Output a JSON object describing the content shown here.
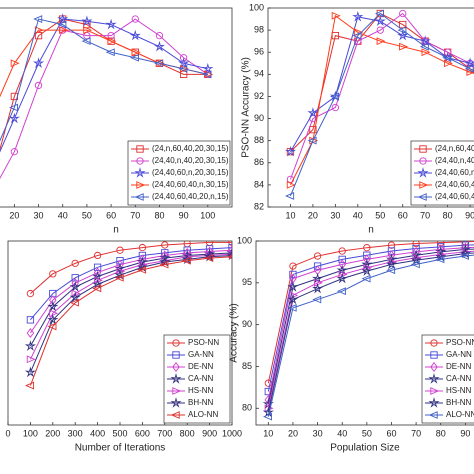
{
  "chart_data": [
    {
      "type": "line",
      "x_label": "n",
      "x": [
        10,
        20,
        30,
        40,
        50,
        60,
        70,
        80,
        90,
        100
      ],
      "xlim": [
        0,
        110
      ],
      "xticks": [
        20,
        30,
        40,
        50,
        60,
        70,
        80,
        90,
        100
      ],
      "ylim": [
        82,
        100
      ],
      "legend": "lower right",
      "series": [
        {
          "name": "(24,n,60,40,20,30,15)",
          "color": "#e03030",
          "marker": "square",
          "values": [
            84,
            92,
            97.5,
            99,
            98.5,
            97,
            96,
            95,
            94,
            94
          ]
        },
        {
          "name": "(24,40,n,40,20,30,15)",
          "color": "#d040d0",
          "marker": "circle",
          "values": [
            83,
            87,
            93,
            98,
            97.5,
            97.5,
            99,
            97.5,
            95.5,
            94
          ]
        },
        {
          "name": "(24,40,60,n,20,30,15)",
          "color": "#4a4ad8",
          "marker": "star",
          "values": [
            85,
            90,
            95,
            99,
            98.8,
            98.5,
            97.5,
            96.5,
            95,
            94.5
          ]
        },
        {
          "name": "(24,40,60,40,n,30,15)",
          "color": "#ff3a1a",
          "marker": "tri-right",
          "values": [
            90,
            95,
            98,
            98,
            98,
            97,
            96,
            95,
            94.5,
            94
          ]
        },
        {
          "name": "(24,40,60,40,20,n,15)",
          "color": "#4060c8",
          "marker": "tri-left",
          "values": [
            86,
            91,
            99,
            98.5,
            97,
            96,
            95.5,
            95,
            94.5,
            94
          ]
        }
      ]
    },
    {
      "type": "line",
      "x_label": "n",
      "y_label": "PSO-NN Accuracy (%)",
      "x": [
        10,
        20,
        30,
        40,
        50,
        60,
        70,
        80,
        90,
        100
      ],
      "xlim": [
        0,
        110
      ],
      "xticks": [
        10,
        20,
        30,
        40,
        50,
        60,
        70,
        80,
        90
      ],
      "ylim": [
        82,
        100
      ],
      "yticks": [
        82,
        84,
        86,
        88,
        90,
        92,
        94,
        96,
        98,
        100
      ],
      "legend": "lower right",
      "series": [
        {
          "name": "(24,n,60,40,20,30,15)",
          "color": "#e03030",
          "marker": "square",
          "values": [
            87,
            89,
            97.5,
            97,
            99.5,
            98.5,
            97,
            96,
            94.5,
            93.5
          ]
        },
        {
          "name": "(24,40,n,40,20,30,15)",
          "color": "#d040d0",
          "marker": "circle",
          "values": [
            84.5,
            90,
            91,
            97,
            98,
            99.5,
            97,
            96,
            95,
            94
          ]
        },
        {
          "name": "(24,40,60,n,20,30,15)",
          "color": "#4a4ad8",
          "marker": "star",
          "values": [
            87,
            90.5,
            92,
            99.2,
            98.8,
            97.5,
            97,
            95.5,
            95,
            94
          ]
        },
        {
          "name": "(24,40,60,40,n,30,15)",
          "color": "#ff3a1a",
          "marker": "tri-right",
          "values": [
            84,
            88,
            99.3,
            97.8,
            97,
            96.5,
            96,
            95,
            94.2,
            93.5
          ]
        },
        {
          "name": "(24,40,60,40,20,n,15)",
          "color": "#4060c8",
          "marker": "tri-left",
          "values": [
            83,
            88,
            92,
            97.5,
            99.5,
            98,
            96.5,
            95.5,
            94.5,
            93.5
          ]
        }
      ]
    },
    {
      "type": "line",
      "x_label": "Number of Iterations",
      "x": [
        100,
        200,
        300,
        400,
        500,
        600,
        700,
        800,
        900,
        1000
      ],
      "xlim": [
        0,
        1000
      ],
      "xticks": [
        0,
        100,
        200,
        300,
        400,
        500,
        600,
        700,
        800,
        900,
        1000
      ],
      "ylim": [
        86,
        100
      ],
      "legend": "lower right",
      "series": [
        {
          "name": "PSO-NN",
          "color": "#e03030",
          "marker": "circle",
          "values": [
            96,
            97.5,
            98.3,
            98.9,
            99.3,
            99.5,
            99.7,
            99.8,
            99.9,
            99.9
          ]
        },
        {
          "name": "GA-NN",
          "color": "#4a4ad8",
          "marker": "square",
          "values": [
            94,
            96,
            97.2,
            98,
            98.5,
            98.9,
            99.1,
            99.3,
            99.4,
            99.5
          ]
        },
        {
          "name": "DE-NN",
          "color": "#d040d0",
          "marker": "diamond",
          "values": [
            93,
            95.5,
            96.8,
            97.6,
            98.2,
            98.6,
            98.9,
            99.1,
            99.2,
            99.3
          ]
        },
        {
          "name": "CA-NN",
          "color": "#303080",
          "marker": "star",
          "values": [
            92,
            95,
            96.5,
            97.3,
            97.9,
            98.4,
            98.7,
            98.9,
            99,
            99.1
          ]
        },
        {
          "name": "HS-NN",
          "color": "#d040d0",
          "marker": "tri-right",
          "values": [
            91,
            94.5,
            96,
            97,
            97.7,
            98.2,
            98.5,
            98.8,
            98.9,
            99
          ]
        },
        {
          "name": "BH-NN",
          "color": "#303080",
          "marker": "star",
          "values": [
            90,
            94,
            95.7,
            96.7,
            97.4,
            98,
            98.4,
            98.6,
            98.8,
            98.9
          ]
        },
        {
          "name": "ALO-NN",
          "color": "#e03030",
          "marker": "tri-left",
          "values": [
            89,
            93.5,
            95.3,
            96.4,
            97.2,
            97.8,
            98.2,
            98.5,
            98.7,
            98.8
          ]
        }
      ]
    },
    {
      "type": "line",
      "x_label": "Population Size",
      "y_label": "Accuracy (%)",
      "x": [
        10,
        20,
        30,
        40,
        50,
        60,
        70,
        80,
        90,
        100
      ],
      "xlim": [
        5,
        100
      ],
      "xticks": [
        10,
        20,
        30,
        40,
        50,
        60,
        70,
        80,
        90
      ],
      "ylim": [
        78,
        100
      ],
      "yticks": [
        80,
        85,
        90,
        95,
        100
      ],
      "legend": "lower right",
      "series": [
        {
          "name": "PSO-NN",
          "color": "#e03030",
          "marker": "circle",
          "values": [
            83,
            97,
            98.2,
            98.8,
            99.2,
            99.5,
            99.7,
            99.8,
            99.9,
            100
          ]
        },
        {
          "name": "GA-NN",
          "color": "#4a4ad8",
          "marker": "square",
          "values": [
            82,
            96,
            97,
            97.8,
            98.3,
            98.8,
            99.1,
            99.3,
            99.5,
            99.6
          ]
        },
        {
          "name": "DE-NN",
          "color": "#d040d0",
          "marker": "diamond",
          "values": [
            81,
            95.5,
            96.5,
            97.2,
            97.8,
            98.3,
            98.7,
            99,
            99.2,
            99.3
          ]
        },
        {
          "name": "CA-NN",
          "color": "#303080",
          "marker": "star",
          "values": [
            80.5,
            94.5,
            95.5,
            96.5,
            97.2,
            97.8,
            98.3,
            98.7,
            99,
            99.1
          ]
        },
        {
          "name": "HS-NN",
          "color": "#d040d0",
          "marker": "tri-right",
          "values": [
            80,
            93.5,
            95,
            96,
            96.8,
            97.5,
            98,
            98.4,
            98.7,
            98.9
          ]
        },
        {
          "name": "BH-NN",
          "color": "#303080",
          "marker": "star",
          "values": [
            79.5,
            93,
            94.3,
            95.5,
            96.4,
            97.2,
            97.7,
            98.1,
            98.5,
            98.7
          ]
        },
        {
          "name": "ALO-NN",
          "color": "#4060c8",
          "marker": "tri-left",
          "values": [
            79,
            92,
            93,
            94,
            95.5,
            96.5,
            97.2,
            97.8,
            98.2,
            98.5
          ]
        }
      ]
    }
  ]
}
